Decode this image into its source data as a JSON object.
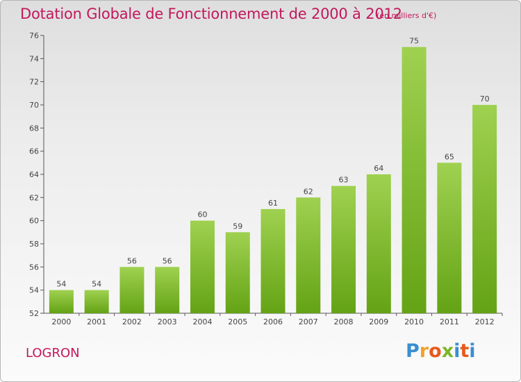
{
  "title": "Dotation Globale de Fonctionnement de 2000 à 2012",
  "subtitle": "(en milliers d'€)",
  "commune": "LOGRON",
  "logo": {
    "text": "Proxiti",
    "letter_colors": [
      "#3a8fd0",
      "#f0a22a",
      "#e8591c",
      "#7cb62a",
      "#3a8fd0",
      "#e8591c",
      "#3a8fd0"
    ]
  },
  "colors": {
    "bar_light": "#9fd150",
    "bar_dark": "#64a315",
    "title": "#c2185b",
    "axis": "#555555"
  },
  "chart_data": {
    "type": "bar",
    "title": "Dotation Globale de Fonctionnement de 2000 à 2012",
    "subtitle": "(en milliers d'€)",
    "categories": [
      "2000",
      "2001",
      "2002",
      "2003",
      "2004",
      "2005",
      "2006",
      "2007",
      "2008",
      "2009",
      "2010",
      "2011",
      "2012"
    ],
    "values": [
      54,
      54,
      56,
      56,
      60,
      59,
      61,
      62,
      63,
      64,
      75,
      65,
      70
    ],
    "ylim": [
      52,
      76
    ],
    "yticks": [
      52,
      54,
      56,
      58,
      60,
      62,
      64,
      66,
      68,
      70,
      72,
      74,
      76
    ],
    "grid": false,
    "legend": "none"
  }
}
